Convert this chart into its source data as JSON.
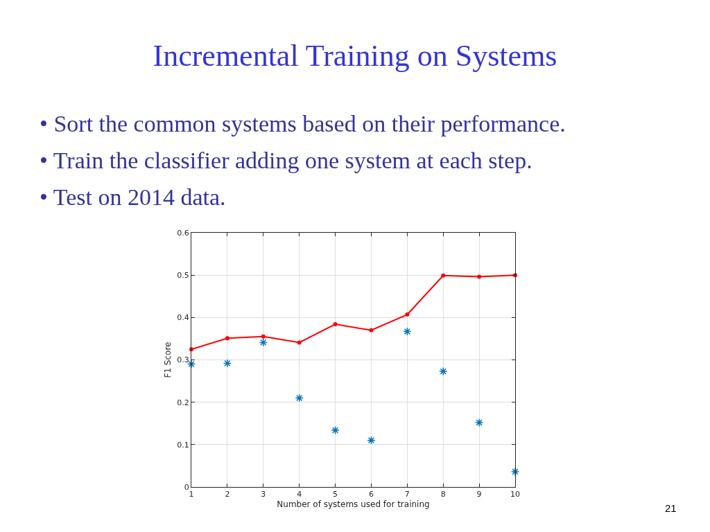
{
  "chart_data": {
    "type": "line",
    "title": "Incremental Training on Systems",
    "subtitle": "• Sort the common systems based on their performance.\n• Train the classifier adding one system at each step.\n• Test on 2014 data.",
    "xlabel": "Number of systems used for training",
    "ylabel": "F1 Score",
    "x": [
      1,
      2,
      3,
      4,
      5,
      6,
      7,
      8,
      9,
      10
    ],
    "series": [
      {
        "color": "#ff0000",
        "marker": "circle",
        "values": [
          0.325,
          0.351,
          0.355,
          0.341,
          0.384,
          0.37,
          0.407,
          0.499,
          0.496,
          0.5
        ]
      },
      {
        "type": "scatter",
        "color": "#0072bd",
        "marker": "cross",
        "values": [
          0.29,
          0.292,
          0.341,
          0.21,
          0.134,
          0.11,
          0.367,
          0.273,
          0.152,
          0.036
        ]
      }
    ],
    "xlim": [
      1,
      10
    ],
    "xticks": [
      1,
      2,
      3,
      4,
      5,
      6,
      7,
      8,
      9,
      10
    ],
    "ylim": [
      0,
      0.6
    ],
    "yticks": [
      0,
      0.1,
      0.2,
      0.3,
      0.4,
      0.5,
      0.6
    ],
    "grid": true,
    "annotations": [
      "21"
    ]
  }
}
